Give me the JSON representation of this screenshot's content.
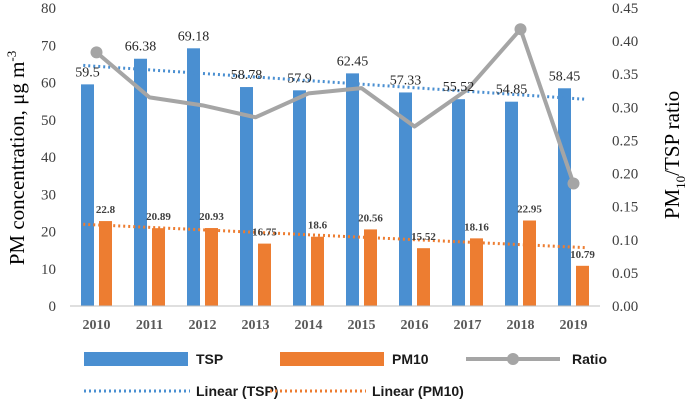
{
  "chart_data": {
    "type": "bar",
    "categories": [
      "2010",
      "2011",
      "2012",
      "2013",
      "2014",
      "2015",
      "2016",
      "2017",
      "2018",
      "2019"
    ],
    "series": [
      {
        "name": "TSP",
        "kind": "bar",
        "axis": "left",
        "color": "#4a8fd1",
        "values": [
          59.5,
          66.38,
          69.18,
          58.78,
          57.9,
          62.45,
          57.33,
          55.52,
          54.85,
          58.45
        ],
        "labels": [
          "59.5",
          "66.38",
          "69.18",
          "58.78",
          "57.9",
          "62.45",
          "57.33",
          "55.52",
          "54.85",
          "58.45"
        ]
      },
      {
        "name": "PM10",
        "kind": "bar",
        "axis": "left",
        "color": "#ed7d31",
        "values": [
          22.8,
          20.89,
          20.93,
          16.75,
          18.6,
          20.56,
          15.52,
          18.16,
          22.95,
          10.79
        ],
        "labels": [
          "22.8",
          "20.89",
          "20.93",
          "16.75",
          "18.6",
          "20.56",
          "15.52",
          "18.16",
          "22.95",
          "10.79"
        ]
      },
      {
        "name": "Ratio",
        "kind": "line",
        "axis": "right",
        "color": "#a5a5a5",
        "values": [
          0.383,
          0.315,
          0.303,
          0.285,
          0.321,
          0.329,
          0.271,
          0.327,
          0.418,
          0.185
        ]
      },
      {
        "name": "Linear (TSP)",
        "kind": "trendline",
        "axis": "left",
        "color": "#4a8fd1",
        "of": "TSP"
      },
      {
        "name": "Linear (PM10)",
        "kind": "trendline",
        "axis": "left",
        "color": "#ed7d31",
        "of": "PM10"
      }
    ],
    "y_left": {
      "label_main": "PM concentration, μg m",
      "label_sup": "-3",
      "ylim": [
        0,
        80
      ],
      "ticks": [
        "0",
        "10",
        "20",
        "30",
        "40",
        "50",
        "60",
        "70",
        "80"
      ]
    },
    "y_right": {
      "label_pre": "PM",
      "label_sub": "10",
      "label_post": "/TSP ratio",
      "ylim": [
        0,
        0.45
      ],
      "ticks": [
        "0.00",
        "0.05",
        "0.10",
        "0.15",
        "0.20",
        "0.25",
        "0.30",
        "0.35",
        "0.40",
        "0.45"
      ]
    },
    "grid": false,
    "legend_position": "bottom"
  }
}
